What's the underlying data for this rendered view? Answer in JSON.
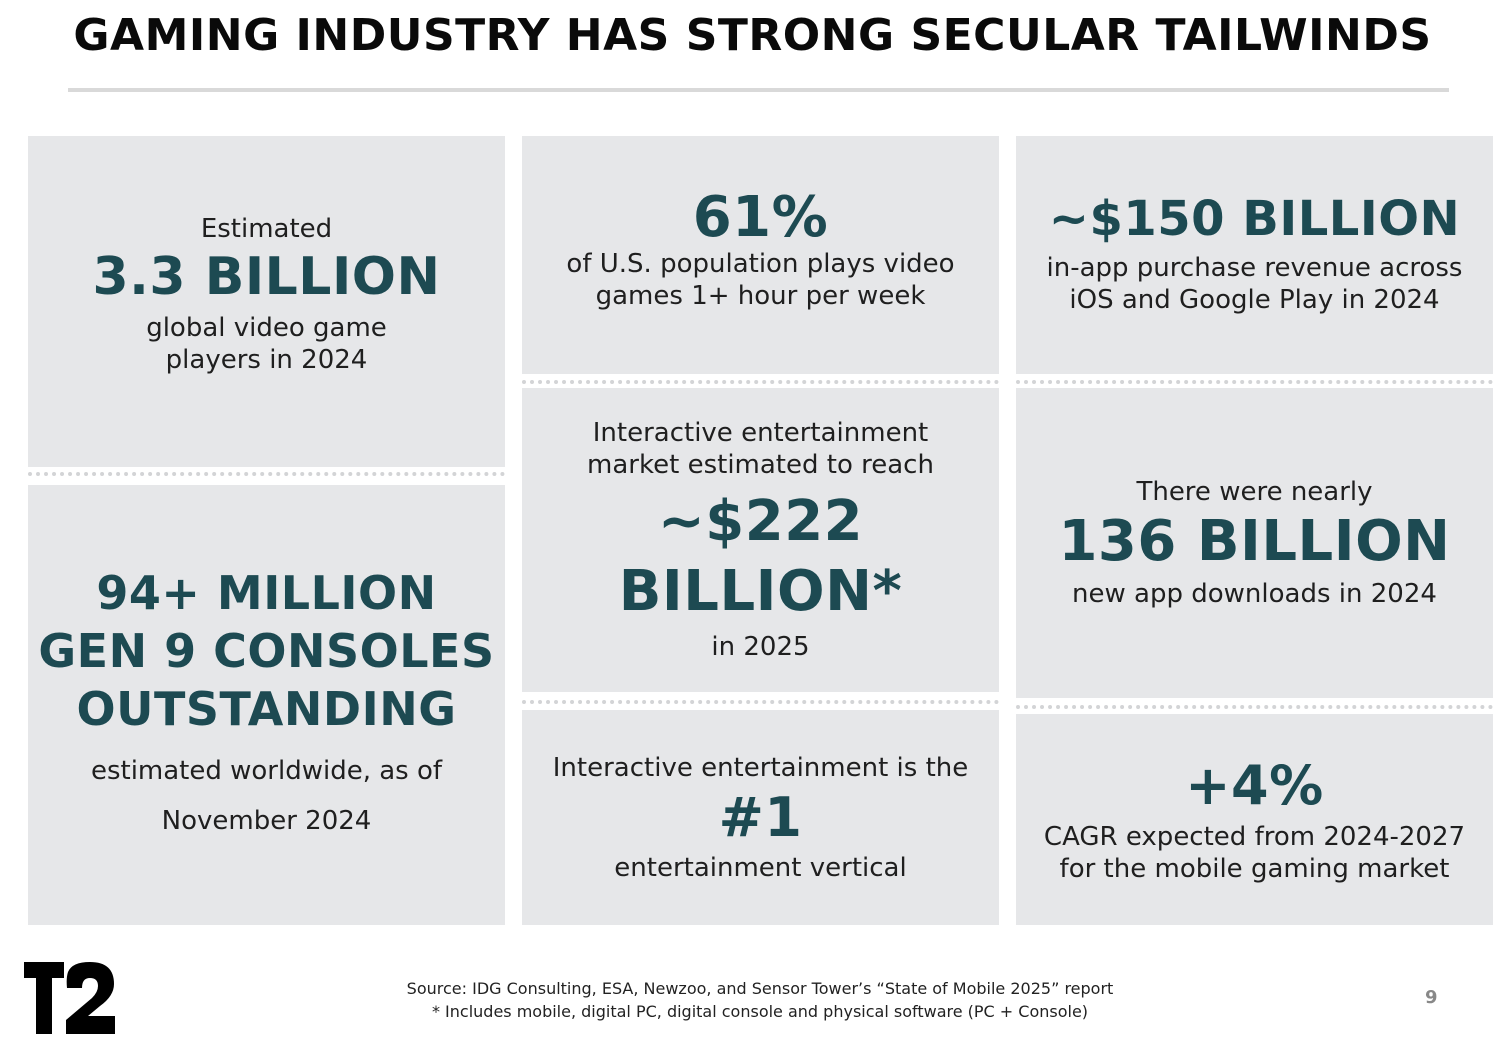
{
  "title": "GAMING INDUSTRY HAS STRONG SECULAR TAILWINDS",
  "cards": {
    "players": {
      "pre": "Estimated",
      "big": "3.3 BILLION",
      "post1": "global video game",
      "post2": "players in 2024"
    },
    "consoles": {
      "big1": "94+ MILLION",
      "big2": "GEN 9 CONSOLES",
      "big3": "OUTSTANDING",
      "post1": "estimated worldwide, as of",
      "post2": "November 2024"
    },
    "us_pop": {
      "big": "61%",
      "post1": "of U.S. population plays video",
      "post2": "games 1+ hour per week"
    },
    "market": {
      "pre1": "Interactive entertainment",
      "pre2": "market estimated to reach",
      "big1": "~$222",
      "big2": "BILLION*",
      "post": "in 2025"
    },
    "vertical": {
      "pre": "Interactive entertainment is the",
      "big": "#1",
      "post": "entertainment vertical"
    },
    "iap": {
      "big": "~$150 BILLION",
      "post1": "in-app purchase revenue across",
      "post2": "iOS and Google Play in 2024"
    },
    "downloads": {
      "pre": "There were nearly",
      "big": "136 BILLION",
      "post": "new app downloads in 2024"
    },
    "cagr": {
      "big": "+4%",
      "post1": "CAGR expected from 2024-2027",
      "post2": "for the mobile gaming market"
    }
  },
  "footer": {
    "source": "Source:  IDG Consulting, ESA, Newzoo, and Sensor Tower’s “State of Mobile 2025” report",
    "note": "*  Includes mobile, digital PC, digital console and physical software (PC + Console)"
  },
  "page_number": "9",
  "logo": {
    "text": "T2"
  },
  "colors": {
    "accent": "#1d4a52",
    "card_bg": "#e6e7e9",
    "page_bg": "#ffffff"
  }
}
